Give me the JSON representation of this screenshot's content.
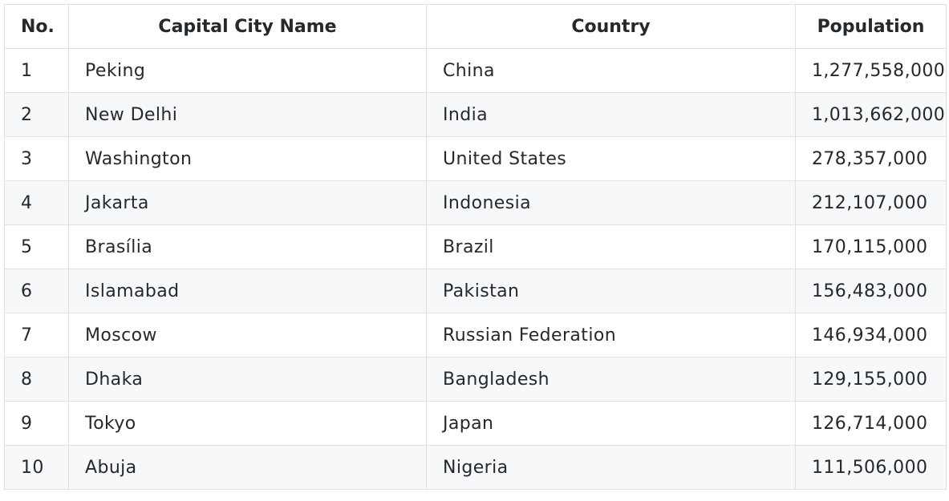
{
  "table": {
    "headers": [
      "No.",
      "Capital City Name",
      "Country",
      "Population"
    ],
    "rows": [
      [
        "1",
        "Peking",
        "China",
        "1,277,558,000"
      ],
      [
        "2",
        "New Delhi",
        "India",
        "1,013,662,000"
      ],
      [
        "3",
        "Washington",
        "United States",
        "278,357,000"
      ],
      [
        "4",
        "Jakarta",
        "Indonesia",
        "212,107,000"
      ],
      [
        "5",
        "Brasília",
        "Brazil",
        "170,115,000"
      ],
      [
        "6",
        "Islamabad",
        "Pakistan",
        "156,483,000"
      ],
      [
        "7",
        "Moscow",
        "Russian Federation",
        "146,934,000"
      ],
      [
        "8",
        "Dhaka",
        "Bangladesh",
        "129,155,000"
      ],
      [
        "9",
        "Tokyo",
        "Japan",
        "126,714,000"
      ],
      [
        "10",
        "Abuja",
        "Nigeria",
        "111,506,000"
      ]
    ]
  },
  "colors": {
    "border": "#dfe2e5",
    "stripe": "#f6f8fa",
    "text": "#24292e"
  }
}
